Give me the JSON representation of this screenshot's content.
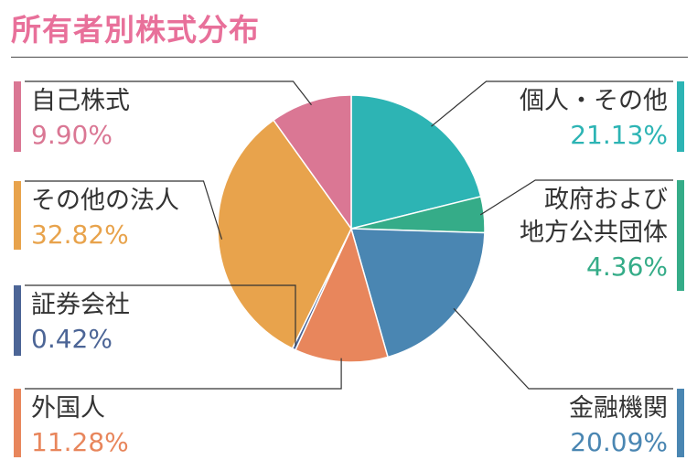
{
  "title": "所有者別株式分布",
  "colors": {
    "title": "#e8709a",
    "text": "#333333",
    "leader": "#333333"
  },
  "chart_data": {
    "type": "pie",
    "title": "所有者別株式分布",
    "slices": [
      {
        "label": "個人・その他",
        "label_lines": [
          "個人・その他"
        ],
        "value": 21.13,
        "value_text": "21.13%",
        "color": "#2db4b4"
      },
      {
        "label": "政府および地方公共団体",
        "label_lines": [
          "政府および",
          "地方公共団体"
        ],
        "value": 4.36,
        "value_text": "4.36%",
        "color": "#35ac88"
      },
      {
        "label": "金融機関",
        "label_lines": [
          "金融機関"
        ],
        "value": 20.09,
        "value_text": "20.09%",
        "color": "#4a86b2"
      },
      {
        "label": "外国人",
        "label_lines": [
          "外国人"
        ],
        "value": 11.28,
        "value_text": "11.28%",
        "color": "#e8865c"
      },
      {
        "label": "証券会社",
        "label_lines": [
          "証券会社"
        ],
        "value": 0.42,
        "value_text": "0.42%",
        "color": "#4c6596"
      },
      {
        "label": "その他の法人",
        "label_lines": [
          "その他の法人"
        ],
        "value": 32.82,
        "value_text": "32.82%",
        "color": "#e8a34c"
      },
      {
        "label": "自己株式",
        "label_lines": [
          "自己株式"
        ],
        "value": 9.9,
        "value_text": "9.90%",
        "color": "#da7794"
      }
    ]
  }
}
